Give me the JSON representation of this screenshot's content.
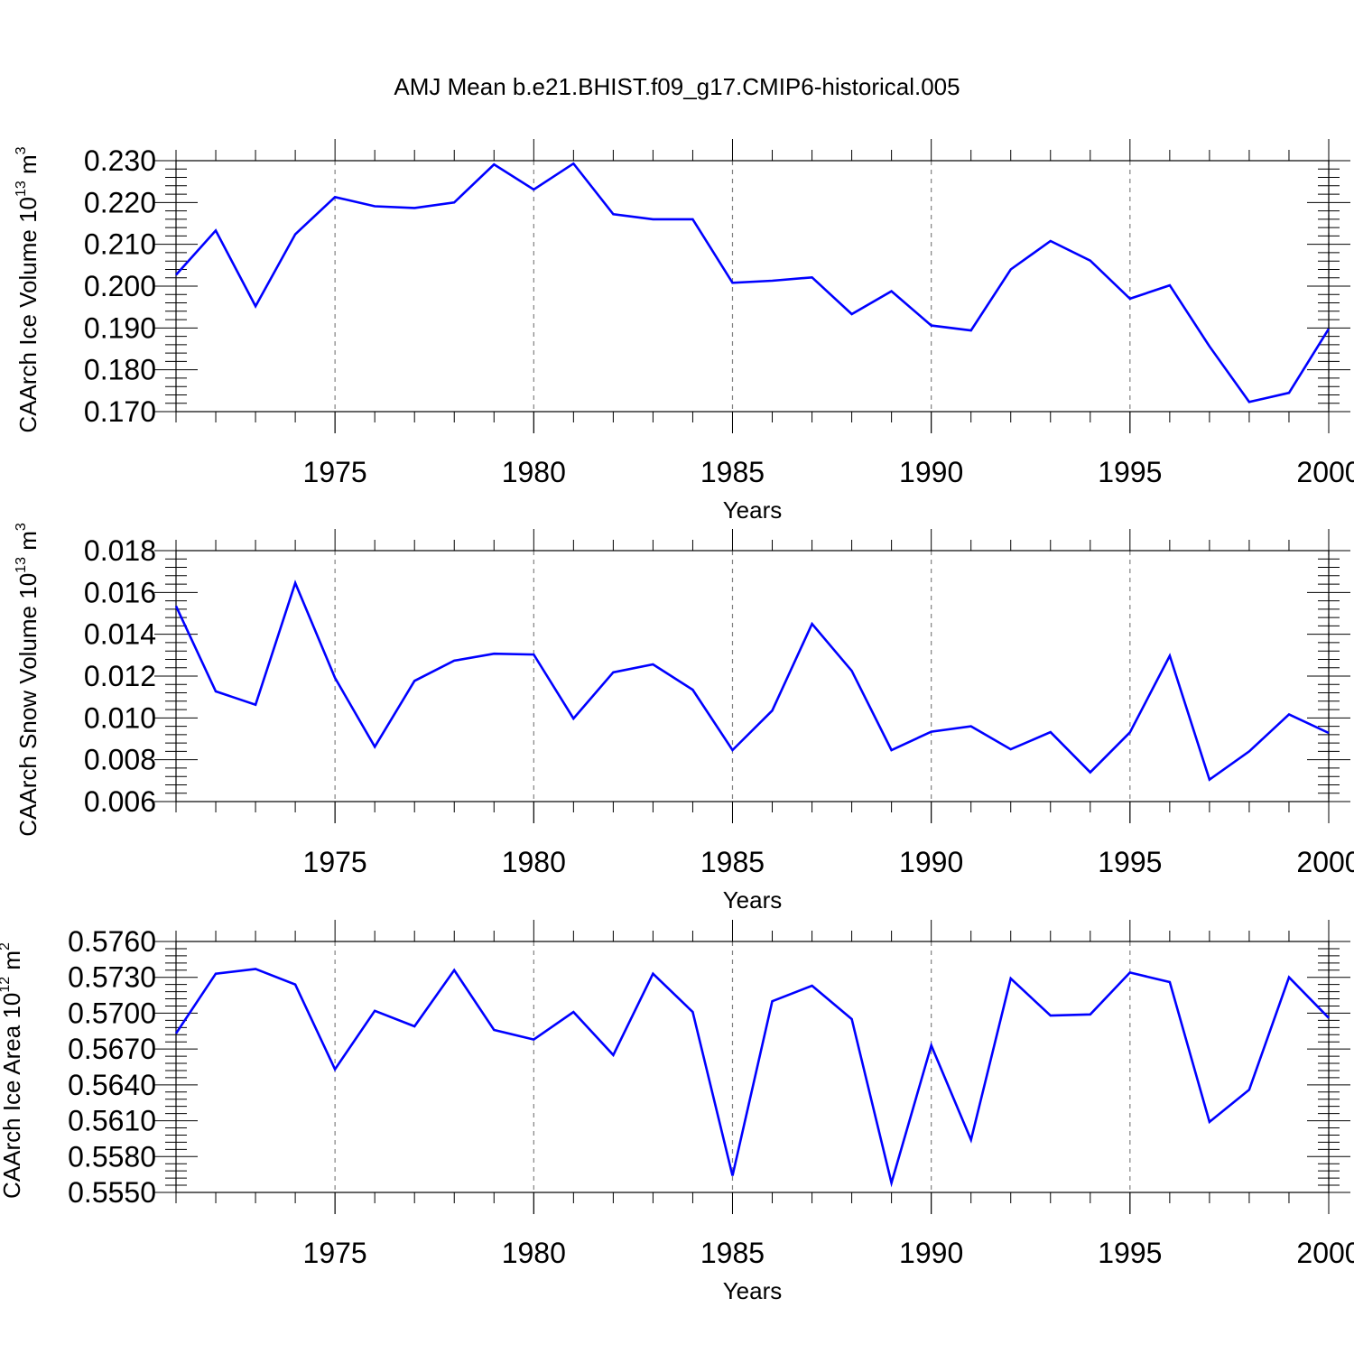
{
  "title": "AMJ Mean b.e21.BHIST.f09_g17.CMIP6-historical.005",
  "colors": {
    "line": "#0000ff",
    "axis": "#000000",
    "grid": "#808080"
  },
  "chart_data": [
    {
      "type": "line",
      "ylabel": "CAArch Ice Volume 10",
      "ylabel_exp": "13",
      "ylabel_unit": " m",
      "ylabel_unit_exp": "3",
      "xlabel": "Years",
      "ylim": [
        0.17,
        0.23
      ],
      "xlim": [
        1971,
        2000
      ],
      "yticks": [
        "0.170",
        "0.180",
        "0.190",
        "0.200",
        "0.210",
        "0.220",
        "0.230"
      ],
      "xticks": [
        "1975",
        "1980",
        "1985",
        "1990",
        "1995",
        "2000"
      ],
      "grid": "vertical dashed at major x ticks",
      "x": [
        1971,
        1972,
        1973,
        1974,
        1975,
        1976,
        1977,
        1978,
        1979,
        1980,
        1981,
        1982,
        1983,
        1984,
        1985,
        1986,
        1987,
        1988,
        1989,
        1990,
        1991,
        1992,
        1993,
        1994,
        1995,
        1996,
        1997,
        1998,
        1999,
        2000
      ],
      "values": [
        0.2027,
        0.2133,
        0.1952,
        0.2124,
        0.2213,
        0.2191,
        0.2187,
        0.22,
        0.2291,
        0.2231,
        0.2293,
        0.2172,
        0.216,
        0.216,
        0.2008,
        0.2013,
        0.2021,
        0.1933,
        0.1988,
        0.1906,
        0.1894,
        0.204,
        0.2108,
        0.2061,
        0.197,
        0.2002,
        0.1856,
        0.1723,
        0.1745,
        0.1898
      ]
    },
    {
      "type": "line",
      "ylabel": "CAArch Snow Volume 10",
      "ylabel_exp": "13",
      "ylabel_unit": " m",
      "ylabel_unit_exp": "3",
      "xlabel": "Years",
      "ylim": [
        0.006,
        0.018
      ],
      "xlim": [
        1971,
        2000
      ],
      "yticks": [
        "0.006",
        "0.008",
        "0.010",
        "0.012",
        "0.014",
        "0.016",
        "0.018"
      ],
      "xticks": [
        "1975",
        "1980",
        "1985",
        "1990",
        "1995",
        "2000"
      ],
      "grid": "vertical dashed at major x ticks",
      "x": [
        1971,
        1972,
        1973,
        1974,
        1975,
        1976,
        1977,
        1978,
        1979,
        1980,
        1981,
        1982,
        1983,
        1984,
        1985,
        1986,
        1987,
        1988,
        1989,
        1990,
        1991,
        1992,
        1993,
        1994,
        1995,
        1996,
        1997,
        1998,
        1999,
        2000
      ],
      "values": [
        0.01535,
        0.01127,
        0.01063,
        0.01645,
        0.01192,
        0.00862,
        0.01177,
        0.01274,
        0.01307,
        0.01303,
        0.00997,
        0.01218,
        0.01256,
        0.01135,
        0.00846,
        0.01035,
        0.0145,
        0.01225,
        0.00846,
        0.00934,
        0.0096,
        0.0085,
        0.00932,
        0.0074,
        0.00931,
        0.01297,
        0.00705,
        0.0084,
        0.01017,
        0.00928
      ]
    },
    {
      "type": "line",
      "ylabel": "CAArch Ice Area 10",
      "ylabel_exp": "12",
      "ylabel_unit": " m",
      "ylabel_unit_exp": "2",
      "xlabel": "Years",
      "ylim": [
        0.555,
        0.576
      ],
      "xlim": [
        1971,
        2000
      ],
      "yticks": [
        "0.5550",
        "0.5580",
        "0.5610",
        "0.5640",
        "0.5670",
        "0.5700",
        "0.5730",
        "0.5760"
      ],
      "xticks": [
        "1975",
        "1980",
        "1985",
        "1990",
        "1995",
        "2000"
      ],
      "grid": "vertical dashed at major x ticks",
      "x": [
        1971,
        1972,
        1973,
        1974,
        1975,
        1976,
        1977,
        1978,
        1979,
        1980,
        1981,
        1982,
        1983,
        1984,
        1985,
        1986,
        1987,
        1988,
        1989,
        1990,
        1991,
        1992,
        1993,
        1994,
        1995,
        1996,
        1997,
        1998,
        1999,
        2000
      ],
      "values": [
        0.5683,
        0.5733,
        0.5737,
        0.5724,
        0.5653,
        0.5702,
        0.5689,
        0.5736,
        0.5686,
        0.5678,
        0.5701,
        0.5665,
        0.5733,
        0.5701,
        0.5564,
        0.571,
        0.5723,
        0.5695,
        0.5558,
        0.5673,
        0.5594,
        0.5729,
        0.5698,
        0.5699,
        0.5734,
        0.5726,
        0.5609,
        0.5636,
        0.573,
        0.5696
      ]
    }
  ]
}
